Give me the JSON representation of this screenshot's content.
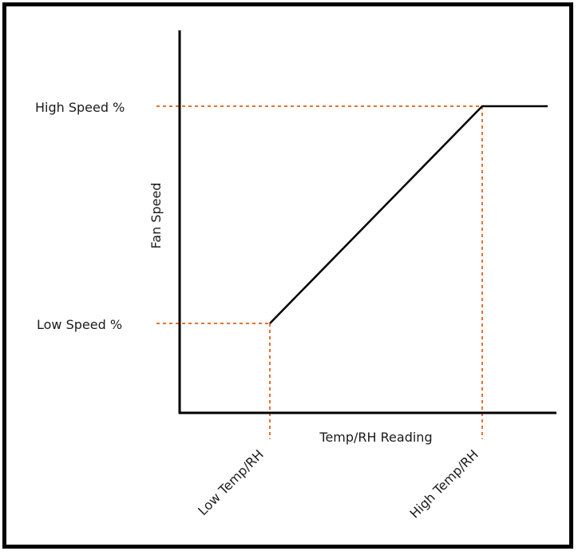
{
  "diagram": {
    "y_axis_label": "Fan Speed",
    "x_axis_label": "Temp/RH Reading",
    "high_speed_label": "High Speed %",
    "low_speed_label": "Low Speed %",
    "low_temp_label": "Low Temp/RH",
    "high_temp_label": "High Temp/RH",
    "curve_color": "#000000",
    "guide_color": "#e8712d"
  }
}
